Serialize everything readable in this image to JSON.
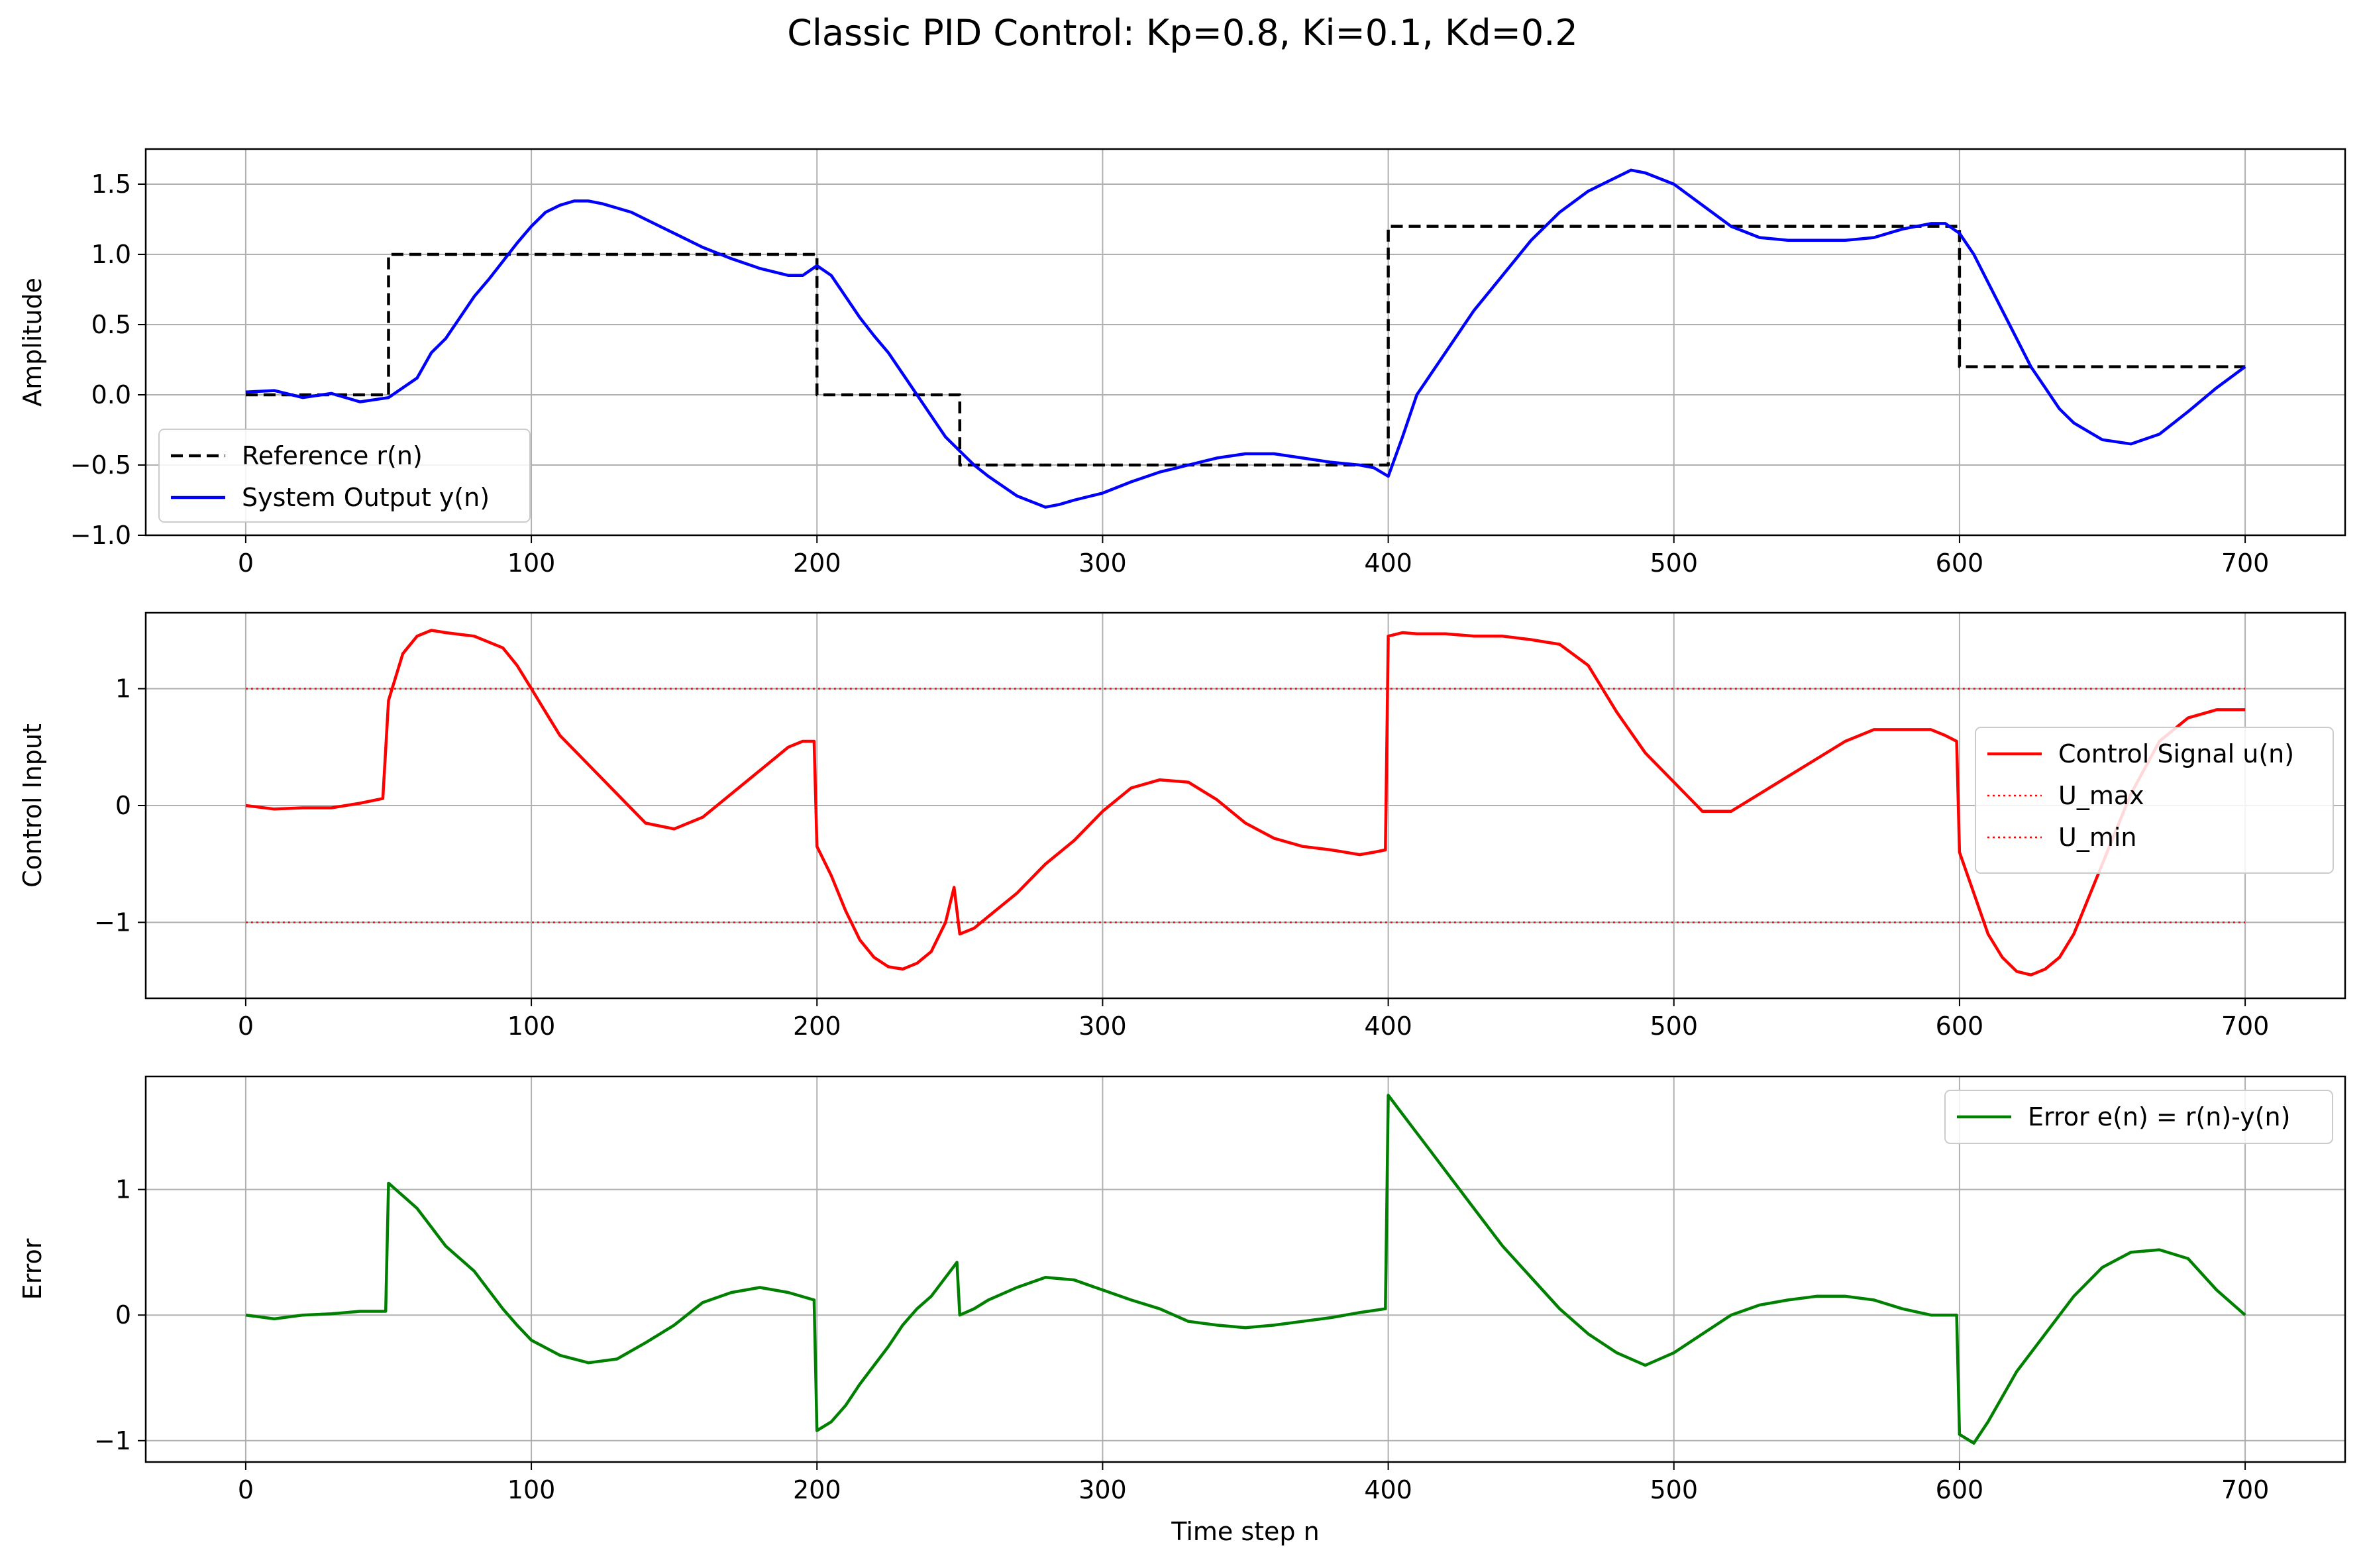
{
  "figure": {
    "suptitle": "Classic PID Control: Kp=0.8, Ki=0.1, Kd=0.2"
  },
  "chart_data": [
    {
      "type": "line",
      "title": "",
      "xlabel": "",
      "ylabel": "Amplitude",
      "xlim": [
        -35,
        735
      ],
      "ylim": [
        -1.0,
        1.75
      ],
      "xticks": [
        "0",
        "100",
        "200",
        "300",
        "400",
        "500",
        "600",
        "700"
      ],
      "yticks": [
        "1.5",
        "1.0",
        "0.5",
        "0.0",
        "−0.5",
        "−1.0"
      ],
      "grid": true,
      "legend": "lower-left",
      "series": [
        {
          "name": "Reference r(n)",
          "color": "#000000",
          "style": "dashed",
          "x": [
            0,
            50,
            50,
            200,
            200,
            250,
            250,
            400,
            400,
            600,
            600,
            700
          ],
          "y": [
            0,
            0,
            1.0,
            1.0,
            0,
            0,
            -0.5,
            -0.5,
            1.2,
            1.2,
            0.2,
            0.2
          ]
        },
        {
          "name": "System Output y(n)",
          "color": "#0000ff",
          "style": "solid",
          "x": [
            0,
            10,
            20,
            30,
            40,
            50,
            55,
            60,
            65,
            70,
            75,
            80,
            85,
            90,
            95,
            100,
            105,
            110,
            115,
            120,
            125,
            130,
            135,
            140,
            150,
            160,
            170,
            180,
            190,
            195,
            200,
            205,
            210,
            215,
            220,
            225,
            230,
            235,
            240,
            245,
            250,
            255,
            260,
            270,
            280,
            285,
            290,
            300,
            310,
            320,
            330,
            340,
            350,
            360,
            370,
            380,
            390,
            395,
            400,
            405,
            410,
            420,
            430,
            440,
            450,
            460,
            470,
            480,
            485,
            490,
            500,
            510,
            520,
            530,
            540,
            550,
            560,
            570,
            580,
            590,
            595,
            600,
            605,
            610,
            615,
            620,
            625,
            630,
            635,
            640,
            650,
            660,
            670,
            680,
            690,
            700
          ],
          "y": [
            0.02,
            0.03,
            -0.02,
            0.01,
            -0.05,
            -0.02,
            0.05,
            0.12,
            0.3,
            0.4,
            0.55,
            0.7,
            0.82,
            0.95,
            1.08,
            1.2,
            1.3,
            1.35,
            1.38,
            1.38,
            1.36,
            1.33,
            1.3,
            1.25,
            1.15,
            1.05,
            0.97,
            0.9,
            0.85,
            0.85,
            0.92,
            0.85,
            0.7,
            0.55,
            0.42,
            0.3,
            0.15,
            0.0,
            -0.15,
            -0.3,
            -0.4,
            -0.5,
            -0.58,
            -0.72,
            -0.8,
            -0.78,
            -0.75,
            -0.7,
            -0.62,
            -0.55,
            -0.5,
            -0.45,
            -0.42,
            -0.42,
            -0.45,
            -0.48,
            -0.5,
            -0.52,
            -0.58,
            -0.3,
            0.0,
            0.3,
            0.6,
            0.85,
            1.1,
            1.3,
            1.45,
            1.55,
            1.6,
            1.58,
            1.5,
            1.35,
            1.2,
            1.12,
            1.1,
            1.1,
            1.1,
            1.12,
            1.18,
            1.22,
            1.22,
            1.15,
            1.0,
            0.8,
            0.6,
            0.4,
            0.2,
            0.05,
            -0.1,
            -0.2,
            -0.32,
            -0.35,
            -0.28,
            -0.12,
            0.05,
            0.2
          ]
        }
      ]
    },
    {
      "type": "line",
      "title": "",
      "xlabel": "",
      "ylabel": "Control Input",
      "xlim": [
        -35,
        735
      ],
      "ylim": [
        -1.65,
        1.65
      ],
      "xticks": [
        "0",
        "100",
        "200",
        "300",
        "400",
        "500",
        "600",
        "700"
      ],
      "yticks": [
        "1",
        "0",
        "−1"
      ],
      "grid": true,
      "legend": "center-right",
      "series": [
        {
          "name": "Control Signal u(n)",
          "color": "#ff0000",
          "style": "solid",
          "x": [
            0,
            10,
            20,
            30,
            40,
            48,
            50,
            55,
            60,
            65,
            70,
            80,
            90,
            95,
            100,
            105,
            110,
            120,
            130,
            140,
            150,
            160,
            170,
            180,
            190,
            195,
            199,
            200,
            205,
            210,
            215,
            220,
            225,
            230,
            235,
            240,
            245,
            248,
            250,
            255,
            260,
            270,
            280,
            290,
            300,
            310,
            320,
            330,
            340,
            350,
            360,
            370,
            380,
            390,
            395,
            399,
            400,
            405,
            410,
            420,
            430,
            440,
            450,
            460,
            470,
            480,
            490,
            500,
            510,
            520,
            530,
            540,
            550,
            560,
            570,
            580,
            590,
            595,
            599,
            600,
            605,
            610,
            615,
            620,
            625,
            630,
            635,
            640,
            650,
            660,
            670,
            680,
            690,
            700
          ],
          "y": [
            0.0,
            -0.03,
            -0.02,
            -0.02,
            0.02,
            0.06,
            0.9,
            1.3,
            1.45,
            1.5,
            1.48,
            1.45,
            1.35,
            1.2,
            1.0,
            0.8,
            0.6,
            0.35,
            0.1,
            -0.15,
            -0.2,
            -0.1,
            0.1,
            0.3,
            0.5,
            0.55,
            0.55,
            -0.35,
            -0.6,
            -0.9,
            -1.15,
            -1.3,
            -1.38,
            -1.4,
            -1.35,
            -1.25,
            -1.0,
            -0.7,
            -1.1,
            -1.05,
            -0.95,
            -0.75,
            -0.5,
            -0.3,
            -0.05,
            0.15,
            0.22,
            0.2,
            0.05,
            -0.15,
            -0.28,
            -0.35,
            -0.38,
            -0.42,
            -0.4,
            -0.38,
            1.45,
            1.48,
            1.47,
            1.47,
            1.45,
            1.45,
            1.42,
            1.38,
            1.2,
            0.8,
            0.45,
            0.2,
            -0.05,
            -0.05,
            0.1,
            0.25,
            0.4,
            0.55,
            0.65,
            0.65,
            0.65,
            0.6,
            0.55,
            -0.4,
            -0.75,
            -1.1,
            -1.3,
            -1.42,
            -1.45,
            -1.4,
            -1.3,
            -1.1,
            -0.5,
            0.1,
            0.55,
            0.75,
            0.82,
            0.82
          ]
        },
        {
          "name": "U_max",
          "color": "#ff0000",
          "style": "dotted",
          "x": [
            0,
            700
          ],
          "y": [
            1,
            1
          ]
        },
        {
          "name": "U_min",
          "color": "#ff0000",
          "style": "dotted",
          "x": [
            0,
            700
          ],
          "y": [
            -1,
            -1
          ]
        }
      ]
    },
    {
      "type": "line",
      "title": "",
      "xlabel": "Time step n",
      "ylabel": "Error",
      "xlim": [
        -35,
        735
      ],
      "ylim": [
        -1.17,
        1.9
      ],
      "xticks": [
        "0",
        "100",
        "200",
        "300",
        "400",
        "500",
        "600",
        "700"
      ],
      "yticks": [
        "1",
        "0",
        "−1"
      ],
      "grid": true,
      "legend": "top-right",
      "series": [
        {
          "name": "Error e(n) = r(n)-y(n)",
          "color": "#008000",
          "style": "solid",
          "x": [
            0,
            10,
            20,
            30,
            40,
            49,
            50,
            55,
            60,
            65,
            70,
            75,
            80,
            85,
            90,
            95,
            100,
            110,
            120,
            130,
            140,
            150,
            160,
            170,
            180,
            190,
            199,
            200,
            205,
            210,
            215,
            220,
            225,
            230,
            235,
            240,
            245,
            249,
            250,
            255,
            260,
            270,
            280,
            290,
            300,
            310,
            320,
            330,
            340,
            350,
            360,
            370,
            380,
            390,
            399,
            400,
            405,
            410,
            415,
            420,
            430,
            440,
            450,
            460,
            470,
            480,
            490,
            500,
            510,
            520,
            530,
            540,
            550,
            560,
            570,
            580,
            590,
            599,
            600,
            605,
            610,
            615,
            620,
            630,
            640,
            650,
            660,
            670,
            680,
            690,
            700
          ],
          "y": [
            0.0,
            -0.03,
            0.0,
            0.01,
            0.03,
            0.03,
            1.05,
            0.95,
            0.85,
            0.7,
            0.55,
            0.45,
            0.35,
            0.2,
            0.05,
            -0.08,
            -0.2,
            -0.32,
            -0.38,
            -0.35,
            -0.22,
            -0.08,
            0.1,
            0.18,
            0.22,
            0.18,
            0.12,
            -0.92,
            -0.85,
            -0.72,
            -0.55,
            -0.4,
            -0.25,
            -0.08,
            0.05,
            0.15,
            0.3,
            0.42,
            0.0,
            0.05,
            0.12,
            0.22,
            0.3,
            0.28,
            0.2,
            0.12,
            0.05,
            -0.05,
            -0.08,
            -0.1,
            -0.08,
            -0.05,
            -0.02,
            0.02,
            0.05,
            1.75,
            1.6,
            1.45,
            1.3,
            1.15,
            0.85,
            0.55,
            0.3,
            0.05,
            -0.15,
            -0.3,
            -0.4,
            -0.3,
            -0.15,
            0.0,
            0.08,
            0.12,
            0.15,
            0.15,
            0.12,
            0.05,
            0.0,
            0.0,
            -0.95,
            -1.02,
            -0.85,
            -0.65,
            -0.45,
            -0.15,
            0.15,
            0.38,
            0.5,
            0.52,
            0.45,
            0.2,
            0.0
          ]
        }
      ]
    }
  ]
}
